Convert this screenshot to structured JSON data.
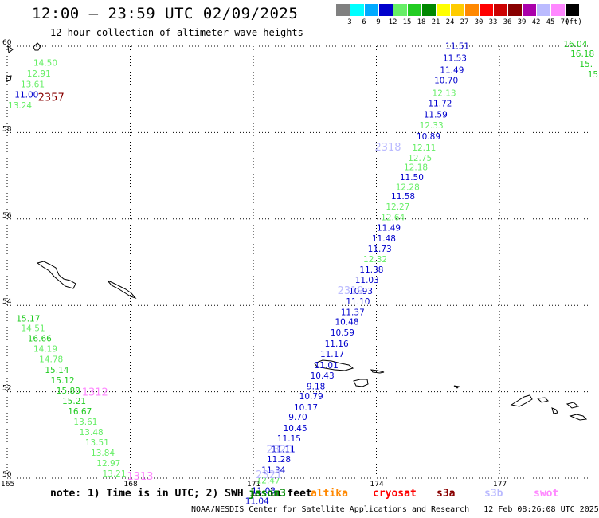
{
  "header": {
    "title": "12:00 – 23:59 UTC 02/09/2025",
    "subtitle": "12 hour collection of altimeter wave heights"
  },
  "legend": {
    "unit": "(ft)",
    "bins": [
      {
        "label": "3",
        "color": "#808080"
      },
      {
        "label": "6",
        "color": "#00ffff"
      },
      {
        "label": "9",
        "color": "#00aaff"
      },
      {
        "label": "12",
        "color": "#0000cc"
      },
      {
        "label": "15",
        "color": "#66ee66"
      },
      {
        "label": "18",
        "color": "#22cc22"
      },
      {
        "label": "21",
        "color": "#008800"
      },
      {
        "label": "24",
        "color": "#ffff00"
      },
      {
        "label": "27",
        "color": "#ffcc00"
      },
      {
        "label": "30",
        "color": "#ff8800"
      },
      {
        "label": "33",
        "color": "#ff0000"
      },
      {
        "label": "36",
        "color": "#cc0000"
      },
      {
        "label": "39",
        "color": "#880000"
      },
      {
        "label": "42",
        "color": "#aa00aa"
      },
      {
        "label": "45",
        "color": "#bbbbff"
      },
      {
        "label": "70",
        "color": "#ff88ff"
      },
      {
        "label": "",
        "color": "#000000"
      }
    ]
  },
  "axes": {
    "lon_ticks": [
      "165",
      "168",
      "171",
      "174",
      "177"
    ],
    "lat_ticks": [
      "60",
      "58",
      "56",
      "54",
      "52",
      "50"
    ]
  },
  "note": {
    "prefix": "note: 1) Time is in UTC; 2) SWH is in feet",
    "satellites": [
      {
        "name": "jason3",
        "color": "#008800"
      },
      {
        "name": "altika",
        "color": "#ff8800"
      },
      {
        "name": "cryosat",
        "color": "#ff0000"
      },
      {
        "name": "s3a",
        "color": "#880000"
      },
      {
        "name": "s3b",
        "color": "#bbbbff"
      },
      {
        "name": "swot",
        "color": "#ff88ff"
      }
    ]
  },
  "footer": {
    "credit": "NOAA/NESDIS Center for Satellite Applications and Research",
    "timestamp": "12 Feb 08:26:08 UTC 2025"
  },
  "pass_labels": [
    {
      "text": "2357",
      "color": "#880000",
      "lon": 165.75,
      "lat": 58.74
    },
    {
      "text": "2318",
      "color": "#bbbbff",
      "lon": 173.96,
      "lat": 57.58
    },
    {
      "text": "2319",
      "color": "#bbbbff",
      "lon": 173.05,
      "lat": 54.26
    },
    {
      "text": "1312",
      "color": "#ff88ff",
      "lon": 166.82,
      "lat": 51.91
    },
    {
      "text": "2320",
      "color": "#bbbbff",
      "lon": 171.32,
      "lat": 50.58
    },
    {
      "text": "1313",
      "color": "#ff88ff",
      "lon": 167.92,
      "lat": 49.96
    },
    {
      "text": "2321",
      "color": "#bbbbff",
      "lon": 171.06,
      "lat": 50.0
    }
  ],
  "wave_heights": [
    {
      "v": "14.50",
      "c": "#66ee66",
      "lon": 165.64,
      "lat": 59.55
    },
    {
      "v": "12.91",
      "c": "#66ee66",
      "lon": 165.48,
      "lat": 59.3
    },
    {
      "v": "13.61",
      "c": "#66ee66",
      "lon": 165.33,
      "lat": 59.05
    },
    {
      "v": "11.00",
      "c": "#0000cc",
      "lon": 165.18,
      "lat": 58.81
    },
    {
      "v": "13.24",
      "c": "#66ee66",
      "lon": 165.02,
      "lat": 58.56
    },
    {
      "v": "16.04",
      "c": "#22cc22",
      "lon": 178.56,
      "lat": 59.98
    },
    {
      "v": "16.18",
      "c": "#22cc22",
      "lon": 178.73,
      "lat": 59.76
    },
    {
      "v": "15.",
      "c": "#22cc22",
      "lon": 178.95,
      "lat": 59.52
    },
    {
      "v": "15",
      "c": "#22cc22",
      "lon": 179.15,
      "lat": 59.28
    },
    {
      "v": "11.51",
      "c": "#0000cc",
      "lon": 175.68,
      "lat": 59.94
    },
    {
      "v": "11.53",
      "c": "#0000cc",
      "lon": 175.62,
      "lat": 59.66
    },
    {
      "v": "11.49",
      "c": "#0000cc",
      "lon": 175.55,
      "lat": 59.38
    },
    {
      "v": "10.70",
      "c": "#0000cc",
      "lon": 175.41,
      "lat": 59.14
    },
    {
      "v": "12.13",
      "c": "#66ee66",
      "lon": 175.36,
      "lat": 58.85
    },
    {
      "v": "11.72",
      "c": "#0000cc",
      "lon": 175.26,
      "lat": 58.61
    },
    {
      "v": "11.59",
      "c": "#0000cc",
      "lon": 175.15,
      "lat": 58.35
    },
    {
      "v": "12.33",
      "c": "#66ee66",
      "lon": 175.05,
      "lat": 58.1
    },
    {
      "v": "10.89",
      "c": "#0000cc",
      "lon": 174.98,
      "lat": 57.84
    },
    {
      "v": "12.11",
      "c": "#66ee66",
      "lon": 174.87,
      "lat": 57.58
    },
    {
      "v": "12.75",
      "c": "#66ee66",
      "lon": 174.77,
      "lat": 57.34
    },
    {
      "v": "12.18",
      "c": "#66ee66",
      "lon": 174.67,
      "lat": 57.13
    },
    {
      "v": "11.50",
      "c": "#0000cc",
      "lon": 174.57,
      "lat": 56.9
    },
    {
      "v": "12.28",
      "c": "#66ee66",
      "lon": 174.47,
      "lat": 56.67
    },
    {
      "v": "11.58",
      "c": "#0000cc",
      "lon": 174.36,
      "lat": 56.46
    },
    {
      "v": "12.27",
      "c": "#66ee66",
      "lon": 174.23,
      "lat": 56.22
    },
    {
      "v": "12.64",
      "c": "#66ee66",
      "lon": 174.11,
      "lat": 55.97
    },
    {
      "v": "11.49",
      "c": "#0000cc",
      "lon": 174.01,
      "lat": 55.73
    },
    {
      "v": "11.48",
      "c": "#0000cc",
      "lon": 173.89,
      "lat": 55.48
    },
    {
      "v": "11.73",
      "c": "#0000cc",
      "lon": 173.79,
      "lat": 55.24
    },
    {
      "v": "12.32",
      "c": "#66ee66",
      "lon": 173.68,
      "lat": 55.0
    },
    {
      "v": "11.38",
      "c": "#0000cc",
      "lon": 173.59,
      "lat": 54.76
    },
    {
      "v": "11.03",
      "c": "#0000cc",
      "lon": 173.48,
      "lat": 54.52
    },
    {
      "v": "10.93",
      "c": "#0000cc",
      "lon": 173.33,
      "lat": 54.26
    },
    {
      "v": "11.10",
      "c": "#0000cc",
      "lon": 173.26,
      "lat": 54.02
    },
    {
      "v": "11.37",
      "c": "#0000cc",
      "lon": 173.13,
      "lat": 53.77
    },
    {
      "v": "10.48",
      "c": "#0000cc",
      "lon": 172.99,
      "lat": 53.55
    },
    {
      "v": "10.59",
      "c": "#0000cc",
      "lon": 172.88,
      "lat": 53.3
    },
    {
      "v": "11.16",
      "c": "#0000cc",
      "lon": 172.74,
      "lat": 53.04
    },
    {
      "v": "11.17",
      "c": "#0000cc",
      "lon": 172.63,
      "lat": 52.8
    },
    {
      "v": "11.01",
      "c": "#0000cc",
      "lon": 172.49,
      "lat": 52.55
    },
    {
      "v": "10.43",
      "c": "#0000cc",
      "lon": 172.39,
      "lat": 52.31
    },
    {
      "v": "9.18",
      "c": "#0000cc",
      "lon": 172.3,
      "lat": 52.06
    },
    {
      "v": "10.79",
      "c": "#0000cc",
      "lon": 172.12,
      "lat": 51.83
    },
    {
      "v": "10.17",
      "c": "#0000cc",
      "lon": 171.99,
      "lat": 51.57
    },
    {
      "v": "9.70",
      "c": "#0000cc",
      "lon": 171.86,
      "lat": 51.35
    },
    {
      "v": "10.45",
      "c": "#0000cc",
      "lon": 171.73,
      "lat": 51.09
    },
    {
      "v": "11.15",
      "c": "#0000cc",
      "lon": 171.58,
      "lat": 50.85
    },
    {
      "v": "11.11",
      "c": "#0000cc",
      "lon": 171.44,
      "lat": 50.6
    },
    {
      "v": "11.28",
      "c": "#0000cc",
      "lon": 171.33,
      "lat": 50.37
    },
    {
      "v": "11.34",
      "c": "#0000cc",
      "lon": 171.2,
      "lat": 50.12
    },
    {
      "v": "12.47",
      "c": "#66ee66",
      "lon": 171.07,
      "lat": 49.88
    },
    {
      "v": "11.03",
      "c": "#0000cc",
      "lon": 170.96,
      "lat": 49.64
    },
    {
      "v": "11.04",
      "c": "#0000cc",
      "lon": 170.8,
      "lat": 49.4
    },
    {
      "v": "15.17",
      "c": "#22cc22",
      "lon": 165.22,
      "lat": 53.63
    },
    {
      "v": "14.51",
      "c": "#66ee66",
      "lon": 165.34,
      "lat": 53.4
    },
    {
      "v": "16.66",
      "c": "#22cc22",
      "lon": 165.5,
      "lat": 53.16
    },
    {
      "v": "14.19",
      "c": "#66ee66",
      "lon": 165.64,
      "lat": 52.92
    },
    {
      "v": "14.78",
      "c": "#66ee66",
      "lon": 165.78,
      "lat": 52.68
    },
    {
      "v": "15.14",
      "c": "#22cc22",
      "lon": 165.92,
      "lat": 52.44
    },
    {
      "v": "15.12",
      "c": "#22cc22",
      "lon": 166.06,
      "lat": 52.2
    },
    {
      "v": "15.88",
      "c": "#22cc22",
      "lon": 166.2,
      "lat": 51.96
    },
    {
      "v": "15.21",
      "c": "#22cc22",
      "lon": 166.34,
      "lat": 51.72
    },
    {
      "v": "16.67",
      "c": "#22cc22",
      "lon": 166.48,
      "lat": 51.48
    },
    {
      "v": "13.61",
      "c": "#66ee66",
      "lon": 166.62,
      "lat": 51.24
    },
    {
      "v": "13.48",
      "c": "#66ee66",
      "lon": 166.76,
      "lat": 51.0
    },
    {
      "v": "13.51",
      "c": "#66ee66",
      "lon": 166.9,
      "lat": 50.76
    },
    {
      "v": "13.84",
      "c": "#66ee66",
      "lon": 167.04,
      "lat": 50.52
    },
    {
      "v": "12.97",
      "c": "#66ee66",
      "lon": 167.18,
      "lat": 50.28
    },
    {
      "v": "13.21",
      "c": "#66ee66",
      "lon": 167.32,
      "lat": 50.04
    }
  ]
}
